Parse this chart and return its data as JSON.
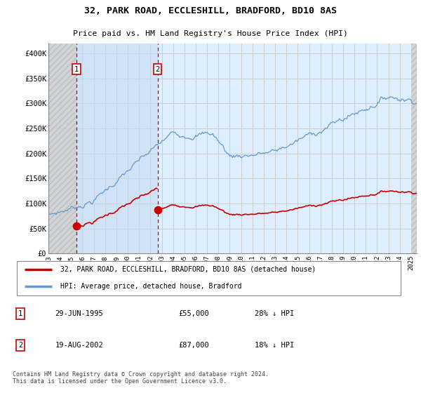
{
  "title1": "32, PARK ROAD, ECCLESHILL, BRADFORD, BD10 8AS",
  "title2": "Price paid vs. HM Land Registry's House Price Index (HPI)",
  "ylim": [
    0,
    420000
  ],
  "yticks": [
    0,
    50000,
    100000,
    150000,
    200000,
    250000,
    300000,
    350000,
    400000
  ],
  "ytick_labels": [
    "£0",
    "£50K",
    "£100K",
    "£150K",
    "£200K",
    "£250K",
    "£300K",
    "£350K",
    "£400K"
  ],
  "transaction1_date": 1995.49,
  "transaction1_price": 55000,
  "transaction2_date": 2002.63,
  "transaction2_price": 87000,
  "red_line_color": "#cc0000",
  "blue_line_color": "#6699cc",
  "grid_color": "#cccccc",
  "bg_color": "#ddeeff",
  "legend_label1": "32, PARK ROAD, ECCLESHILL, BRADFORD, BD10 8AS (detached house)",
  "legend_label2": "HPI: Average price, detached house, Bradford",
  "note1_label": "1",
  "note1_date": "29-JUN-1995",
  "note1_price": "£55,000",
  "note1_hpi": "28% ↓ HPI",
  "note2_label": "2",
  "note2_date": "19-AUG-2002",
  "note2_price": "£87,000",
  "note2_hpi": "18% ↓ HPI",
  "footer": "Contains HM Land Registry data © Crown copyright and database right 2024.\nThis data is licensed under the Open Government Licence v3.0."
}
